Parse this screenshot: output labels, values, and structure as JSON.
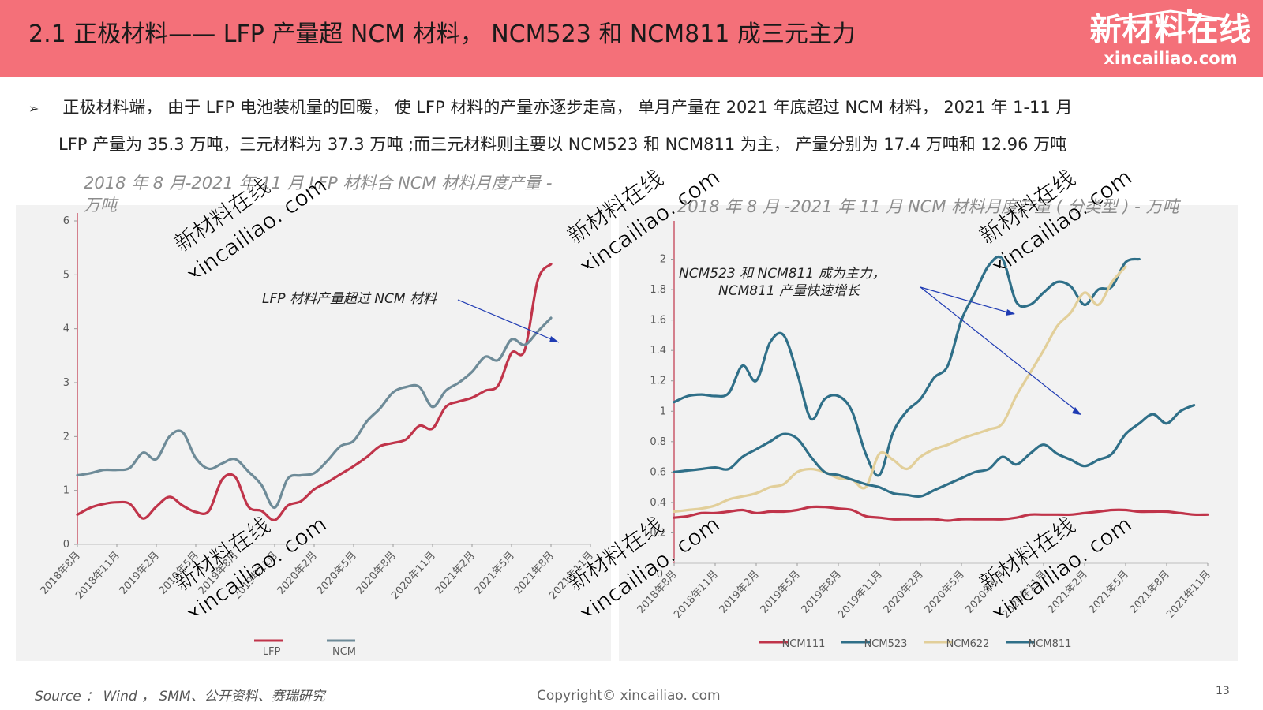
{
  "header": {
    "title": "2.1  正极材料——  LFP 产量超 NCM 材料，   NCM523 和 NCM811 成三元主力"
  },
  "logo": {
    "cn": "新材料在线",
    "en": "xincailiao.com"
  },
  "bullet": {
    "mark": "➢",
    "line1": "正极材料端，  由于 LFP 电池装机量的回暖，  使 LFP 材料的产量亦逐步走高，  单月产量在 2021 年底超过 NCM 材料，   2021 年 1-11 月",
    "line2": "LFP 产量为 35.3 万吨，三元材料为 37.3 万吨 ;而三元材料则主要以 NCM523 和 NCM811 为主，  产量分别为 17.4 万吨和 12.96 万吨"
  },
  "watermark": {
    "cn": "新材料在线",
    "en": "xincailiao. com"
  },
  "chart_data": [
    {
      "type": "line",
      "title": "2018 年 8 月-2021 年 11 月 LFP 材料合 NCM 材料月度产量 - 万吨",
      "xlabel": "",
      "ylabel": "",
      "ylim": [
        0,
        6
      ],
      "yticks": [
        "0",
        "1",
        "2",
        "3",
        "4",
        "5",
        "6"
      ],
      "categories": [
        "2018年8月",
        "2018年11月",
        "2019年2月",
        "2019年5月",
        "2019年8月",
        "2019年11月",
        "2020年2月",
        "2020年5月",
        "2020年8月",
        "2020年11月",
        "2021年2月",
        "2021年5月",
        "2021年8月",
        "2021年11月"
      ],
      "x": [
        0,
        1,
        2,
        3,
        4,
        5,
        6,
        7,
        8,
        9,
        10,
        11,
        12,
        13,
        14,
        15,
        16,
        17,
        18,
        19,
        20,
        21,
        22,
        23,
        24,
        25,
        26,
        27,
        28,
        29,
        30,
        31,
        32,
        33,
        34,
        35,
        36,
        37,
        38,
        39
      ],
      "series": [
        {
          "name": "LFP",
          "color": "#c0344a",
          "values": [
            0.55,
            0.68,
            0.75,
            0.78,
            0.75,
            0.48,
            0.7,
            0.88,
            0.72,
            0.6,
            0.62,
            1.2,
            1.25,
            0.7,
            0.62,
            0.45,
            0.72,
            0.8,
            1.02,
            1.15,
            1.3,
            1.45,
            1.62,
            1.82,
            1.88,
            1.95,
            2.2,
            2.15,
            2.55,
            2.65,
            2.72,
            2.85,
            2.95,
            3.55,
            3.6,
            4.9,
            5.2,
            null,
            null,
            null
          ]
        },
        {
          "name": "NCM",
          "color": "#6e8b98",
          "values": [
            1.28,
            1.32,
            1.38,
            1.38,
            1.42,
            1.7,
            1.58,
            2.0,
            2.08,
            1.6,
            1.4,
            1.5,
            1.58,
            1.35,
            1.1,
            0.68,
            1.22,
            1.28,
            1.32,
            1.55,
            1.82,
            1.92,
            2.28,
            2.52,
            2.82,
            2.92,
            2.92,
            2.55,
            2.85,
            3.0,
            3.2,
            3.48,
            3.42,
            3.8,
            3.7,
            3.95,
            4.2,
            null,
            null,
            null
          ]
        }
      ],
      "annotation": "LFP 材料产量超过 NCM 材料",
      "legend": "bottom"
    },
    {
      "type": "line",
      "title": "2018 年 8 月 -2021 年 11 月 NCM 材料月度产量 ( 分类型 ) - 万吨",
      "xlabel": "",
      "ylabel": "",
      "ylim": [
        0,
        2.2
      ],
      "yticks": [
        "0.2",
        "0.4",
        "0.6",
        "0.8",
        "1",
        "1.2",
        "1.4",
        "1.6",
        "1.8",
        "2"
      ],
      "categories": [
        "2018年8月",
        "2018年11月",
        "2019年2月",
        "2019年5月",
        "2019年8月",
        "2019年11月",
        "2020年2月",
        "2020年5月",
        "2020年8月",
        "2020年11月",
        "2021年2月",
        "2021年5月",
        "2021年8月",
        "2021年11月"
      ],
      "x": [
        0,
        1,
        2,
        3,
        4,
        5,
        6,
        7,
        8,
        9,
        10,
        11,
        12,
        13,
        14,
        15,
        16,
        17,
        18,
        19,
        20,
        21,
        22,
        23,
        24,
        25,
        26,
        27,
        28,
        29,
        30,
        31,
        32,
        33,
        34,
        35,
        36,
        37,
        38,
        39
      ],
      "series": [
        {
          "name": "NCM111",
          "color": "#c0344a",
          "values": [
            0.3,
            0.31,
            0.33,
            0.33,
            0.34,
            0.35,
            0.33,
            0.34,
            0.34,
            0.35,
            0.37,
            0.37,
            0.36,
            0.35,
            0.31,
            0.3,
            0.29,
            0.29,
            0.29,
            0.29,
            0.28,
            0.29,
            0.29,
            0.29,
            0.29,
            0.3,
            0.32,
            0.32,
            0.32,
            0.32,
            0.33,
            0.34,
            0.35,
            0.35,
            0.34,
            0.34,
            0.34,
            0.33,
            0.32,
            0.32
          ]
        },
        {
          "name": "NCM523",
          "color": "#2f6f88",
          "values": [
            1.06,
            1.1,
            1.11,
            1.1,
            1.12,
            1.3,
            1.2,
            1.45,
            1.5,
            1.25,
            0.95,
            1.08,
            1.1,
            1.0,
            0.72,
            0.58,
            0.86,
            1.0,
            1.08,
            1.22,
            1.3,
            1.6,
            1.78,
            1.96,
            2.0,
            1.72,
            1.7,
            1.78,
            1.85,
            1.82,
            1.7,
            1.8,
            1.82,
            1.98,
            2.0,
            null,
            null,
            null,
            null,
            null
          ]
        },
        {
          "name": "NCM622",
          "color": "#e2cf9a",
          "values": [
            0.34,
            0.35,
            0.36,
            0.38,
            0.42,
            0.44,
            0.46,
            0.5,
            0.52,
            0.6,
            0.62,
            0.6,
            0.56,
            0.55,
            0.5,
            0.72,
            0.68,
            0.62,
            0.7,
            0.75,
            0.78,
            0.82,
            0.85,
            0.88,
            0.92,
            1.1,
            1.25,
            1.4,
            1.56,
            1.65,
            1.78,
            1.7,
            1.85,
            1.95,
            null,
            null,
            null,
            null,
            null,
            null
          ]
        },
        {
          "name": "NCM811",
          "color": "#2f6f88",
          "values": [
            0.6,
            0.61,
            0.62,
            0.63,
            0.62,
            0.7,
            0.75,
            0.8,
            0.85,
            0.82,
            0.7,
            0.6,
            0.58,
            0.55,
            0.52,
            0.5,
            0.46,
            0.45,
            0.44,
            0.48,
            0.52,
            0.56,
            0.6,
            0.62,
            0.7,
            0.65,
            0.72,
            0.78,
            0.72,
            0.68,
            0.64,
            0.68,
            0.72,
            0.85,
            0.92,
            0.98,
            0.92,
            1.0,
            1.04,
            null
          ]
        }
      ],
      "annotation": "NCM523 和 NCM811 成为主力，NCM811 产量快速增长",
      "annotation_line2": "NCM811 产量快速增长",
      "legend": "bottom"
    }
  ],
  "footer": {
    "source": "Source ：  Wind ，    SMM、公开资料、赛瑞研究",
    "copyright": "Copyright©  xincailiao.  com",
    "page": "13"
  }
}
